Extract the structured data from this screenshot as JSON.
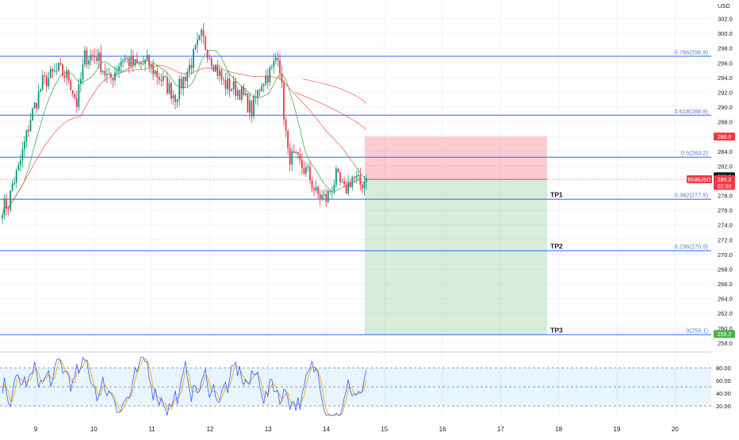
{
  "chart_data": {
    "type": "candlestick",
    "symbol": "BNBUSD",
    "currency": "USD",
    "x_ticks": [
      "9",
      "10",
      "11",
      "12",
      "13",
      "14",
      "15",
      "16",
      "17",
      "18",
      "19",
      "20"
    ],
    "price_ticks": [
      258.0,
      260.0,
      262.0,
      264.0,
      266.0,
      268.0,
      270.0,
      272.0,
      274.0,
      276.0,
      278.0,
      280.0,
      282.0,
      284.0,
      286.0,
      288.0,
      290.0,
      292.0,
      294.0,
      296.0,
      298.0,
      300.0,
      302.0
    ],
    "price_range": [
      257.5,
      304.0
    ],
    "fib_levels": [
      {
        "label": "0.786(296.9)",
        "price": 296.9
      },
      {
        "label": "0.618(288.9)",
        "price": 288.9
      },
      {
        "label": "0.5(283.2)",
        "price": 283.2
      },
      {
        "label": "0.382(277.5)",
        "price": 277.5
      },
      {
        "label": "0.236(270.5)",
        "price": 270.5
      },
      {
        "label": "0(259.1)",
        "price": 259.1
      }
    ],
    "targets": [
      {
        "label": "TP1",
        "price": 277.5
      },
      {
        "label": "TP2",
        "price": 270.5
      },
      {
        "label": "TP3",
        "price": 259.1
      }
    ],
    "position": {
      "entry": 280.2,
      "stop": 286.0,
      "target": 259.1,
      "start_day": 14.66,
      "end_day": 17.8
    },
    "price_badges": [
      {
        "text": "286.0",
        "price": 286.0,
        "color": "#f23645"
      },
      {
        "text": "280.3",
        "price": 280.6,
        "color": "#131722"
      },
      {
        "text": "BNBUSD",
        "price": 280.2,
        "color": "#f23645"
      },
      {
        "text": "280.2",
        "price": 280.2,
        "color": "#f23645"
      },
      {
        "text": "02:50",
        "price": 279.3,
        "color": "#f23645"
      },
      {
        "text": "259.2",
        "price": 259.2,
        "color": "#4caf50"
      }
    ],
    "last_price": 280.2,
    "stoch_ticks": [
      "80.00",
      "60.00",
      "40.00",
      "20.00"
    ],
    "stoch_levels": [
      80,
      50,
      20
    ],
    "colors": {
      "up": "#089981",
      "down": "#f23645",
      "fib_line": "#2962ff",
      "fib_text": "#5b7cc4",
      "ma_fast": "#4caf50",
      "ma_slow": "#f44336",
      "stoch_k": "#2962ff",
      "stoch_d": "#ff9800"
    }
  }
}
